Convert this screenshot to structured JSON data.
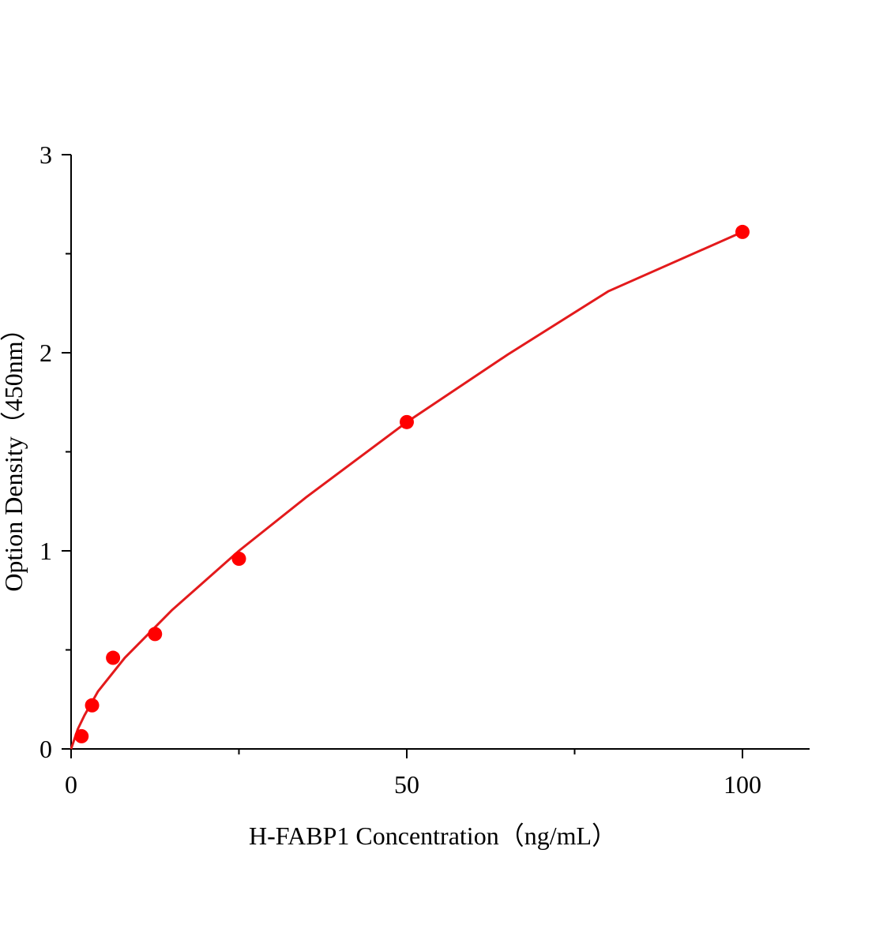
{
  "chart_data": {
    "type": "scatter",
    "x_label": "H-FABP1 Concentration（ng/mL）",
    "y_label": "Option Density（450nm）",
    "series": [
      {
        "style": "line",
        "color": "#e31a1c",
        "x": [
          0,
          1,
          2,
          4,
          8,
          15,
          25,
          35,
          50,
          65,
          80,
          100
        ],
        "values": [
          0,
          0.1,
          0.17,
          0.29,
          0.46,
          0.7,
          1.0,
          1.27,
          1.65,
          1.99,
          2.31,
          2.61
        ]
      },
      {
        "style": "markers",
        "color": "#ff0000",
        "x": [
          1.56,
          3.125,
          6.25,
          12.5,
          25,
          50,
          100
        ],
        "values": [
          0.064,
          0.22,
          0.46,
          0.58,
          0.96,
          1.65,
          2.61
        ]
      }
    ],
    "xlim": [
      0,
      110
    ],
    "xticks": [
      0,
      50,
      100
    ],
    "xminorticks": [
      25,
      75
    ],
    "ylim": [
      0,
      3
    ],
    "yticks": [
      0,
      1,
      2,
      3
    ],
    "yminorticks": [
      0.5,
      1.5,
      2.5
    ]
  }
}
